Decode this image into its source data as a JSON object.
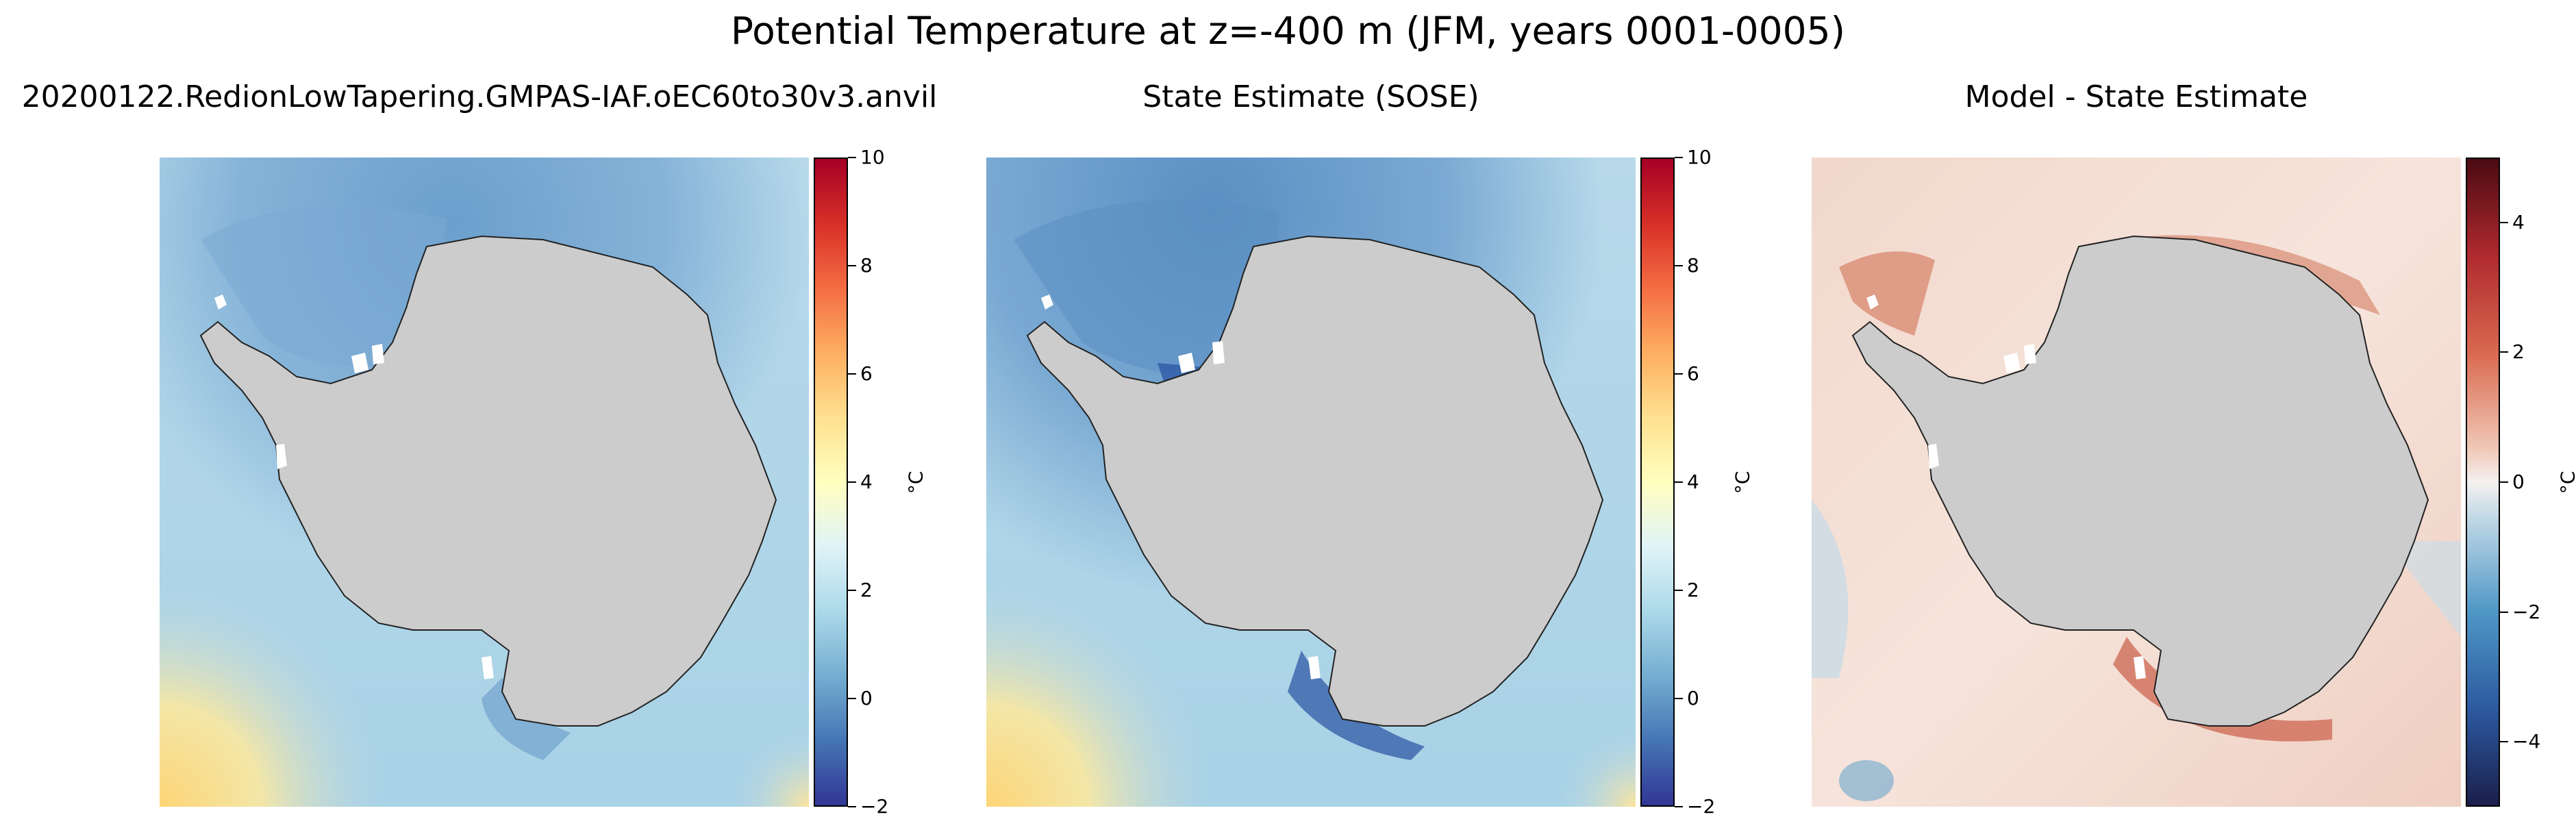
{
  "figure": {
    "title": "Potential Temperature at z=-400 m (JFM, years 0001-0005)"
  },
  "chart_data": [
    {
      "type": "heatmap",
      "title": "20200122.RedionLowTapering.GMPAS-IAF.oEC60to30v3.anvil",
      "colormap": "RdYlBu_r",
      "colorbar": {
        "label": "°C",
        "range": [
          -2,
          10
        ],
        "ticks": [
          "−2",
          "0",
          "2",
          "4",
          "6",
          "8",
          "10"
        ]
      },
      "land_color": "#cccccc"
    },
    {
      "type": "heatmap",
      "title": "State Estimate (SOSE)",
      "colormap": "RdYlBu_r",
      "colorbar": {
        "label": "°C",
        "range": [
          -2,
          10
        ],
        "ticks": [
          "−2",
          "0",
          "2",
          "4",
          "6",
          "8",
          "10"
        ]
      },
      "land_color": "#cccccc"
    },
    {
      "type": "heatmap",
      "title": "Model - State Estimate",
      "colormap": "RdBu_r",
      "colorbar": {
        "label": "°C",
        "range": [
          -5,
          5
        ],
        "ticks": [
          "−4",
          "−2",
          "0",
          "2",
          "4"
        ]
      },
      "land_color": "#cccccc"
    }
  ]
}
